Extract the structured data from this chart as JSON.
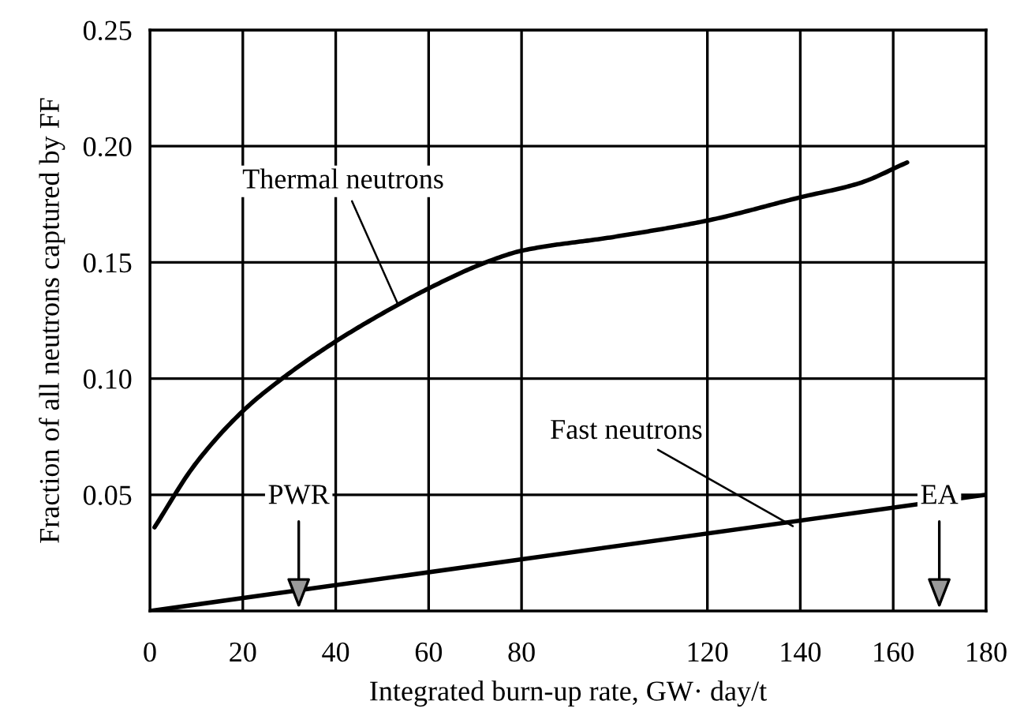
{
  "chart_data": {
    "type": "line",
    "xlabel": "Integrated burn-up rate, GW· day/t",
    "ylabel": "Fraction of all neutrons captured by FF",
    "series": [
      {
        "color": "#000000",
        "x": [
          1,
          9.7,
          20,
          27.8,
          40,
          53.6,
          60.2,
          72.3,
          80,
          100,
          120,
          140,
          152.6,
          163
        ],
        "values": [
          0.036,
          0.063,
          0.086,
          0.099,
          0.116,
          0.132,
          0.139,
          0.15,
          0.155,
          0.161,
          0.168,
          0.178,
          0.184,
          0.193
        ]
      },
      {
        "color": "#000000",
        "x": [
          0,
          180
        ],
        "values": [
          0,
          0.05
        ]
      }
    ],
    "annotations": [
      {
        "text": "Thermal neutrons",
        "x": 53.4,
        "y": 0.132
      },
      {
        "text": "Fast neutrons",
        "x": 138.4,
        "y": 0.0365
      },
      "PWR",
      "EA"
    ],
    "xlim": [
      0,
      180
    ],
    "xticks": [
      0,
      20,
      40,
      60,
      80,
      120,
      140,
      160,
      180
    ],
    "ylim": [
      0,
      0.25
    ],
    "yticks": [
      {
        "value": 0.05,
        "label": "0.05"
      },
      {
        "value": 0.1,
        "label": "0.10"
      },
      {
        "value": 0.15,
        "label": "0.15"
      },
      {
        "value": 0.2,
        "label": "0.20"
      },
      {
        "value": 0.25,
        "label": "0.25"
      }
    ],
    "grid": true,
    "legend": false,
    "marker": "none",
    "line_style": "solid"
  }
}
